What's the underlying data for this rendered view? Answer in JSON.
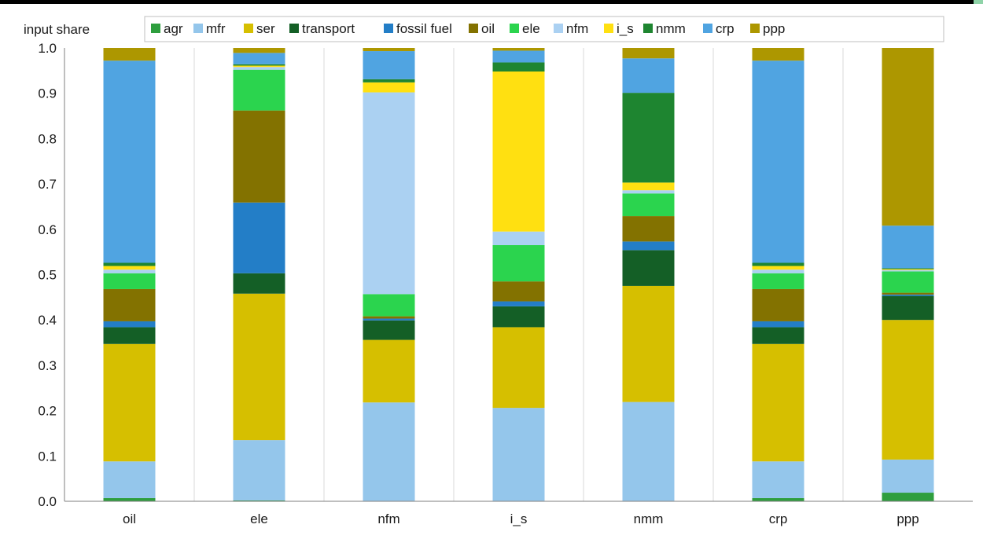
{
  "chart_data": {
    "type": "bar",
    "stacked": true,
    "title": "",
    "ylabel": "input share",
    "xlabel": "",
    "ylim": [
      0,
      1
    ],
    "yticks": [
      "0.0",
      "0.1",
      "0.2",
      "0.3",
      "0.4",
      "0.5",
      "0.6",
      "0.7",
      "0.8",
      "0.9",
      "1.0"
    ],
    "grid": "vertical category separators",
    "legend_position": "top",
    "categories": [
      "oil",
      "ele",
      "nfm",
      "i_s",
      "nmm",
      "crp",
      "ppp"
    ],
    "series": [
      {
        "name": "agr",
        "color": "#2e9e3e",
        "values": [
          0.007,
          0.002,
          0.001,
          0.001,
          0.001,
          0.007,
          0.019
        ]
      },
      {
        "name": "mfr",
        "color": "#94c6eb",
        "values": [
          0.081,
          0.133,
          0.217,
          0.205,
          0.218,
          0.081,
          0.073
        ]
      },
      {
        "name": "ser",
        "color": "#d6bf00",
        "values": [
          0.259,
          0.323,
          0.138,
          0.178,
          0.256,
          0.259,
          0.308
        ]
      },
      {
        "name": "transport",
        "color": "#145f26",
        "values": [
          0.037,
          0.045,
          0.043,
          0.046,
          0.079,
          0.037,
          0.053
        ]
      },
      {
        "name": "fossil fuel",
        "color": "#237ec7",
        "values": [
          0.013,
          0.156,
          0.004,
          0.011,
          0.019,
          0.013,
          0.003
        ]
      },
      {
        "name": "oil",
        "color": "#837200",
        "values": [
          0.071,
          0.203,
          0.005,
          0.044,
          0.056,
          0.071,
          0.004
        ]
      },
      {
        "name": "ele",
        "color": "#2bd44e",
        "values": [
          0.035,
          0.09,
          0.049,
          0.08,
          0.05,
          0.035,
          0.047
        ]
      },
      {
        "name": "nfm",
        "color": "#abd1f2",
        "values": [
          0.008,
          0.006,
          0.445,
          0.03,
          0.007,
          0.008,
          0.003
        ]
      },
      {
        "name": "i_s",
        "color": "#ffe011",
        "values": [
          0.008,
          0.003,
          0.022,
          0.353,
          0.017,
          0.008,
          0.002
        ]
      },
      {
        "name": "nmm",
        "color": "#1e8530",
        "values": [
          0.007,
          0.003,
          0.007,
          0.02,
          0.198,
          0.007,
          0.002
        ]
      },
      {
        "name": "crp",
        "color": "#50a4e1",
        "values": [
          0.446,
          0.025,
          0.062,
          0.026,
          0.076,
          0.446,
          0.094
        ]
      },
      {
        "name": "ppp",
        "color": "#ad9700",
        "values": [
          0.028,
          0.011,
          0.007,
          0.006,
          0.023,
          0.028,
          0.392
        ]
      }
    ]
  }
}
